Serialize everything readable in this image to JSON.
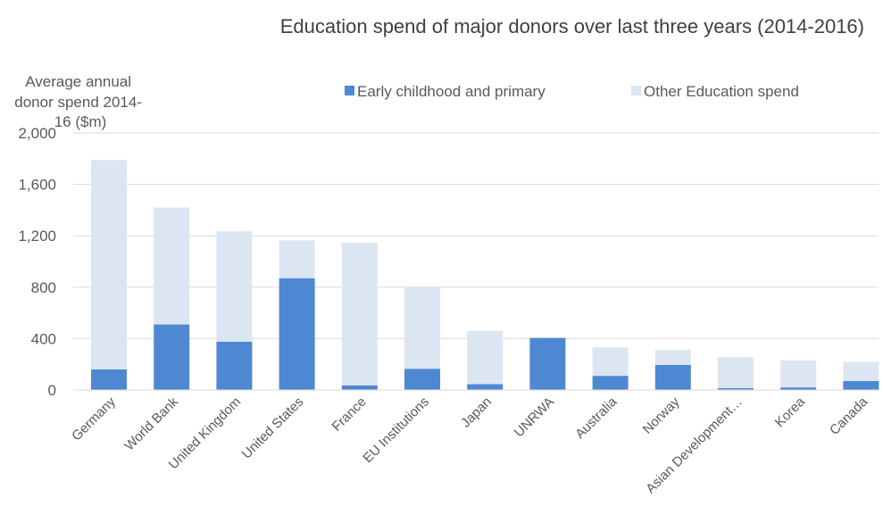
{
  "chart_data": {
    "type": "bar",
    "stacked": true,
    "title": "Education spend of major donors over last three years (2014-2016)",
    "ylabel_lines": [
      "Average annual",
      "donor spend 2014-",
      "16 ($m)"
    ],
    "xlabel": "",
    "ylim": [
      0,
      2000
    ],
    "yticks": [
      0,
      400,
      800,
      1200,
      1600,
      2000
    ],
    "ytick_labels": [
      "0",
      "400",
      "800",
      "1,200",
      "1,600",
      "2,000"
    ],
    "grid": true,
    "legend_position": "top-right",
    "categories": [
      "Germany",
      "World Bank",
      "United Kingdom",
      "United States",
      "France",
      "EU Institutions",
      "Japan",
      "UNRWA",
      "Australia",
      "Norway",
      "Asian Development…",
      "Korea",
      "Canada"
    ],
    "series": [
      {
        "name": "Early childhood and primary",
        "color": "#4f88d2",
        "values": [
          160,
          510,
          375,
          870,
          35,
          165,
          45,
          405,
          110,
          195,
          15,
          20,
          70
        ]
      },
      {
        "name": "Other Education spend",
        "color": "#dce6f2",
        "values": [
          1630,
          910,
          860,
          295,
          1110,
          635,
          415,
          0,
          220,
          115,
          240,
          210,
          150
        ]
      }
    ]
  }
}
